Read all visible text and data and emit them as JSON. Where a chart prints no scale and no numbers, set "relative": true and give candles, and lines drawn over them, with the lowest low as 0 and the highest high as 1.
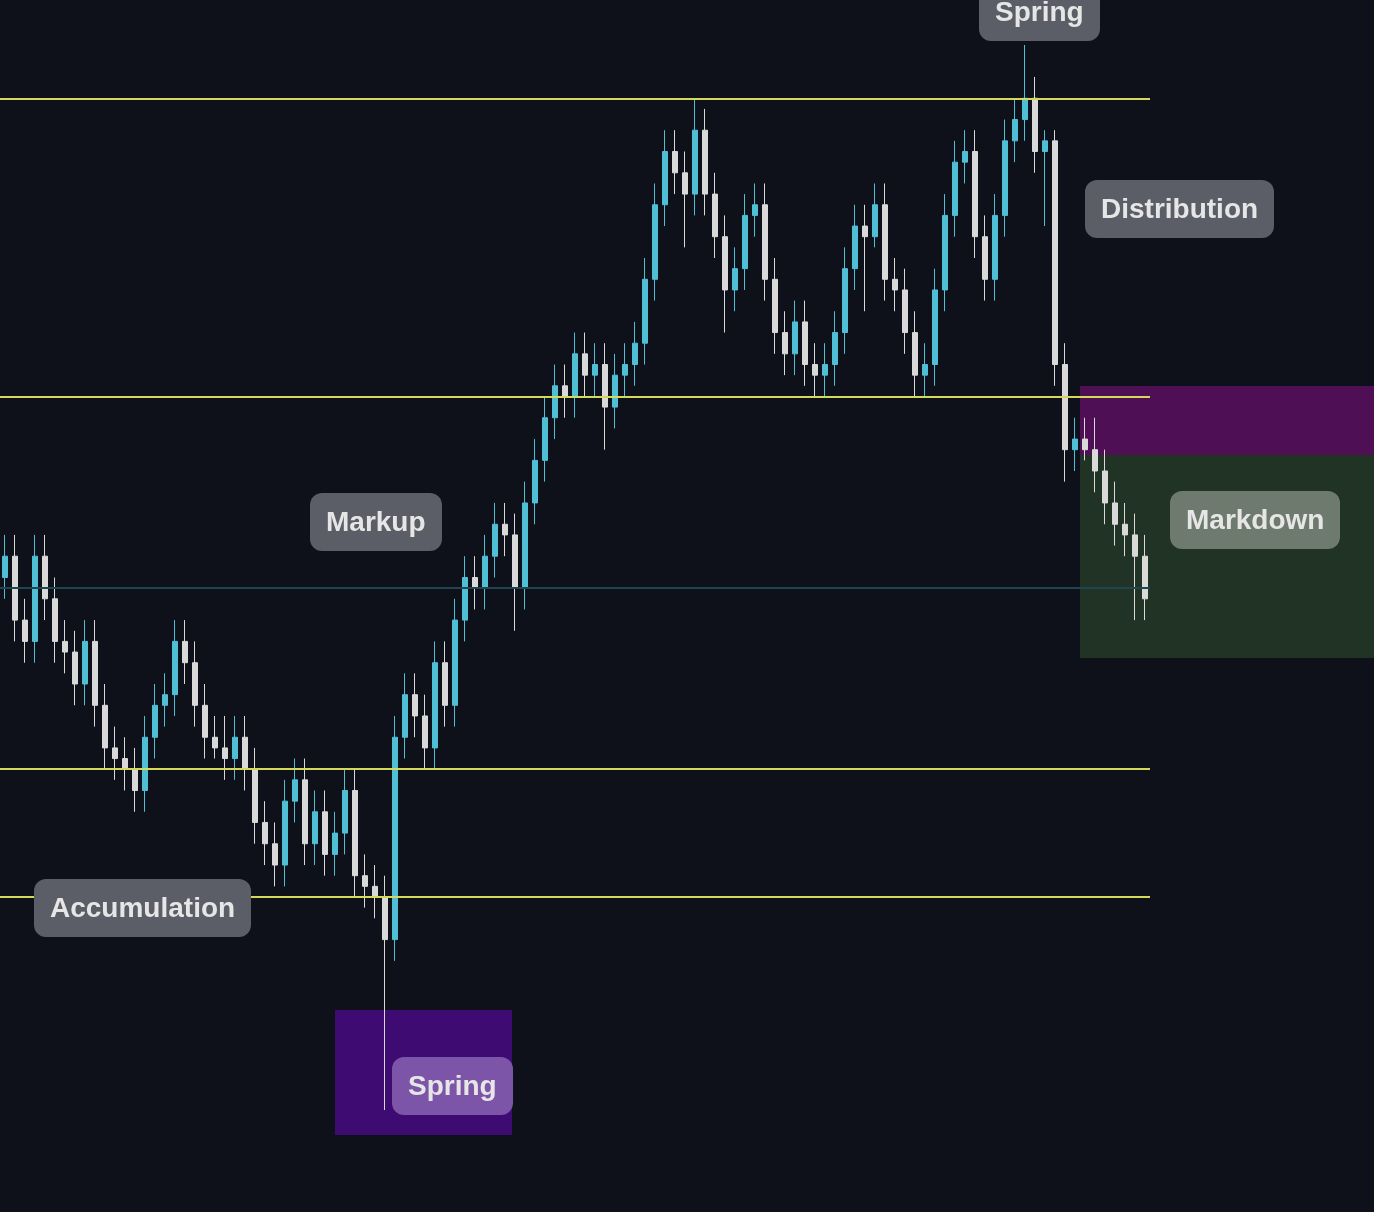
{
  "chart_data": {
    "type": "candlestick",
    "relative": true,
    "categories": [
      null,
      null,
      null,
      null,
      null,
      null,
      null,
      null,
      null,
      null,
      null,
      null,
      null,
      null,
      null,
      null,
      null,
      null,
      null,
      null,
      null,
      null,
      null,
      null,
      null,
      null,
      null,
      null,
      null,
      null,
      null,
      null,
      null,
      null,
      null,
      null,
      null,
      null,
      null,
      null,
      null,
      null,
      null,
      null,
      null,
      null,
      null,
      null,
      null,
      null,
      null,
      null,
      null,
      null,
      null,
      null,
      null,
      null,
      null,
      null,
      null,
      null,
      null,
      null,
      null,
      null,
      null,
      null,
      null,
      null,
      null,
      null,
      null,
      null,
      null,
      null,
      null,
      null,
      null,
      null,
      null,
      null,
      null,
      null,
      null,
      null,
      null,
      null,
      null,
      null,
      null,
      null,
      null,
      null,
      null,
      null,
      null,
      null,
      null,
      null,
      null,
      null,
      null,
      null,
      null,
      null,
      null,
      null,
      null,
      null,
      null,
      null,
      null,
      null,
      null
    ],
    "ohlc": [
      [
        0.5,
        0.54,
        0.48,
        0.52
      ],
      [
        0.52,
        0.54,
        0.44,
        0.46
      ],
      [
        0.46,
        0.48,
        0.42,
        0.44
      ],
      [
        0.44,
        0.54,
        0.42,
        0.52
      ],
      [
        0.52,
        0.54,
        0.46,
        0.48
      ],
      [
        0.48,
        0.5,
        0.42,
        0.44
      ],
      [
        0.44,
        0.46,
        0.41,
        0.43
      ],
      [
        0.43,
        0.45,
        0.38,
        0.4
      ],
      [
        0.4,
        0.46,
        0.38,
        0.44
      ],
      [
        0.44,
        0.46,
        0.36,
        0.38
      ],
      [
        0.38,
        0.4,
        0.32,
        0.34
      ],
      [
        0.34,
        0.36,
        0.31,
        0.33
      ],
      [
        0.33,
        0.35,
        0.3,
        0.32
      ],
      [
        0.32,
        0.34,
        0.28,
        0.3
      ],
      [
        0.3,
        0.37,
        0.28,
        0.35
      ],
      [
        0.35,
        0.4,
        0.33,
        0.38
      ],
      [
        0.38,
        0.41,
        0.36,
        0.39
      ],
      [
        0.39,
        0.46,
        0.37,
        0.44
      ],
      [
        0.44,
        0.46,
        0.4,
        0.42
      ],
      [
        0.42,
        0.44,
        0.36,
        0.38
      ],
      [
        0.38,
        0.4,
        0.33,
        0.35
      ],
      [
        0.35,
        0.37,
        0.33,
        0.34
      ],
      [
        0.34,
        0.37,
        0.31,
        0.33
      ],
      [
        0.33,
        0.37,
        0.31,
        0.35
      ],
      [
        0.35,
        0.37,
        0.3,
        0.32
      ],
      [
        0.32,
        0.34,
        0.25,
        0.27
      ],
      [
        0.27,
        0.29,
        0.23,
        0.25
      ],
      [
        0.25,
        0.27,
        0.21,
        0.23
      ],
      [
        0.23,
        0.31,
        0.21,
        0.29
      ],
      [
        0.29,
        0.33,
        0.27,
        0.31
      ],
      [
        0.31,
        0.33,
        0.23,
        0.25
      ],
      [
        0.25,
        0.3,
        0.23,
        0.28
      ],
      [
        0.28,
        0.3,
        0.22,
        0.24
      ],
      [
        0.24,
        0.28,
        0.22,
        0.26
      ],
      [
        0.26,
        0.32,
        0.24,
        0.3
      ],
      [
        0.3,
        0.32,
        0.2,
        0.22
      ],
      [
        0.22,
        0.24,
        0.19,
        0.21
      ],
      [
        0.21,
        0.23,
        0.18,
        0.2
      ],
      [
        0.2,
        0.22,
        0,
        0.16
      ],
      [
        0.16,
        0.37,
        0.14,
        0.35
      ],
      [
        0.35,
        0.41,
        0.33,
        0.39
      ],
      [
        0.39,
        0.41,
        0.35,
        0.37
      ],
      [
        0.37,
        0.39,
        0.32,
        0.34
      ],
      [
        0.34,
        0.44,
        0.32,
        0.42
      ],
      [
        0.42,
        0.44,
        0.36,
        0.38
      ],
      [
        0.38,
        0.48,
        0.36,
        0.46
      ],
      [
        0.46,
        0.52,
        0.44,
        0.5
      ],
      [
        0.5,
        0.52,
        0.47,
        0.49
      ],
      [
        0.49,
        0.54,
        0.47,
        0.52
      ],
      [
        0.52,
        0.57,
        0.5,
        0.55
      ],
      [
        0.55,
        0.57,
        0.52,
        0.54
      ],
      [
        0.54,
        0.56,
        0.45,
        0.49
      ],
      [
        0.49,
        0.59,
        0.47,
        0.57
      ],
      [
        0.57,
        0.63,
        0.55,
        0.61
      ],
      [
        0.61,
        0.67,
        0.59,
        0.65
      ],
      [
        0.65,
        0.7,
        0.63,
        0.68
      ],
      [
        0.68,
        0.7,
        0.65,
        0.67
      ],
      [
        0.67,
        0.73,
        0.65,
        0.71
      ],
      [
        0.71,
        0.73,
        0.67,
        0.69
      ],
      [
        0.69,
        0.72,
        0.67,
        0.7
      ],
      [
        0.7,
        0.72,
        0.62,
        0.66
      ],
      [
        0.66,
        0.71,
        0.64,
        0.69
      ],
      [
        0.69,
        0.72,
        0.67,
        0.7
      ],
      [
        0.7,
        0.74,
        0.68,
        0.72
      ],
      [
        0.72,
        0.8,
        0.7,
        0.78
      ],
      [
        0.78,
        0.87,
        0.76,
        0.85
      ],
      [
        0.85,
        0.92,
        0.83,
        0.9
      ],
      [
        0.9,
        0.92,
        0.86,
        0.88
      ],
      [
        0.88,
        0.9,
        0.81,
        0.86
      ],
      [
        0.86,
        0.95,
        0.84,
        0.92
      ],
      [
        0.92,
        0.94,
        0.84,
        0.86
      ],
      [
        0.86,
        0.88,
        0.8,
        0.82
      ],
      [
        0.82,
        0.84,
        0.73,
        0.77
      ],
      [
        0.77,
        0.81,
        0.75,
        0.79
      ],
      [
        0.79,
        0.86,
        0.77,
        0.84
      ],
      [
        0.84,
        0.87,
        0.82,
        0.85
      ],
      [
        0.85,
        0.87,
        0.76,
        0.78
      ],
      [
        0.78,
        0.8,
        0.71,
        0.73
      ],
      [
        0.73,
        0.75,
        0.69,
        0.71
      ],
      [
        0.71,
        0.76,
        0.69,
        0.74
      ],
      [
        0.74,
        0.76,
        0.68,
        0.7
      ],
      [
        0.7,
        0.72,
        0.67,
        0.69
      ],
      [
        0.69,
        0.72,
        0.67,
        0.7
      ],
      [
        0.7,
        0.75,
        0.68,
        0.73
      ],
      [
        0.73,
        0.81,
        0.71,
        0.79
      ],
      [
        0.79,
        0.85,
        0.77,
        0.83
      ],
      [
        0.83,
        0.85,
        0.75,
        0.82
      ],
      [
        0.82,
        0.87,
        0.81,
        0.85
      ],
      [
        0.85,
        0.87,
        0.76,
        0.78
      ],
      [
        0.78,
        0.8,
        0.75,
        0.77
      ],
      [
        0.77,
        0.79,
        0.71,
        0.73
      ],
      [
        0.73,
        0.75,
        0.67,
        0.69
      ],
      [
        0.69,
        0.72,
        0.67,
        0.7
      ],
      [
        0.7,
        0.79,
        0.68,
        0.77
      ],
      [
        0.77,
        0.86,
        0.75,
        0.84
      ],
      [
        0.84,
        0.91,
        0.82,
        0.89
      ],
      [
        0.89,
        0.92,
        0.87,
        0.9
      ],
      [
        0.9,
        0.92,
        0.8,
        0.82
      ],
      [
        0.82,
        0.84,
        0.76,
        0.78
      ],
      [
        0.78,
        0.86,
        0.76,
        0.84
      ],
      [
        0.84,
        0.93,
        0.82,
        0.91
      ],
      [
        0.91,
        0.95,
        0.89,
        0.93
      ],
      [
        0.93,
        1,
        0.91,
        0.95
      ],
      [
        0.95,
        0.97,
        0.88,
        0.9
      ],
      [
        0.9,
        0.92,
        0.83,
        0.91
      ],
      [
        0.91,
        0.92,
        0.68,
        0.7
      ],
      [
        0.7,
        0.72,
        0.59,
        0.62
      ],
      [
        0.62,
        0.65,
        0.6,
        0.63
      ],
      [
        0.63,
        0.65,
        0.61,
        0.62
      ],
      [
        0.62,
        0.65,
        0.58,
        0.6
      ],
      [
        0.6,
        0.62,
        0.55,
        0.57
      ],
      [
        0.57,
        0.59,
        0.53,
        0.55
      ],
      [
        0.55,
        0.57,
        0.52,
        0.54
      ],
      [
        0.54,
        0.56,
        0.46,
        0.52
      ],
      [
        0.52,
        0.54,
        0.46,
        0.48
      ]
    ],
    "ref_lines": [
      {
        "axis": "y",
        "value": 0.95,
        "color": "#d6d85a"
      },
      {
        "axis": "y",
        "value": 0.67,
        "color": "#d6d85a"
      },
      {
        "axis": "y",
        "value": 0.32,
        "color": "#d6d85a"
      },
      {
        "axis": "y",
        "value": 0.2,
        "color": "#d6d85a"
      },
      {
        "axis": "y",
        "value": 0.49,
        "color": "#1f4650"
      }
    ],
    "annotations": [
      "Spring",
      "Distribution",
      "Markup",
      "Markdown",
      "Accumulation",
      "Spring"
    ]
  }
}
